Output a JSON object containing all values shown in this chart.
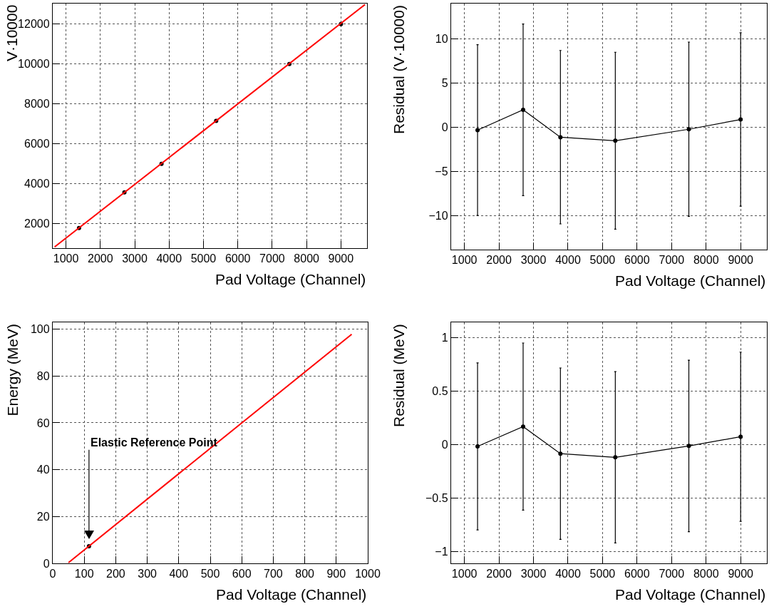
{
  "chart_data": [
    {
      "type": "scatter",
      "xlabel": "Pad Voltage (Channel)",
      "ylabel": "V·10000",
      "xlim": [
        615,
        9760
      ],
      "ylim": [
        770,
        13030
      ],
      "xticks": [
        1000,
        2000,
        3000,
        4000,
        5000,
        6000,
        7000,
        8000,
        9000
      ],
      "yticks": [
        2000,
        4000,
        6000,
        8000,
        10000,
        12000
      ],
      "grid": true,
      "marker": "circle",
      "series": [
        {
          "type": "scatter",
          "color": "#000000",
          "x": [
            1380,
            2700,
            3780,
            5370,
            7500,
            9000
          ],
          "values": [
            1780,
            3570,
            5000,
            7150,
            10000,
            12000
          ]
        },
        {
          "type": "line",
          "marker": "none",
          "color": "#ff0000",
          "x": [
            670,
            9700
          ],
          "values": [
            830,
            12980
          ]
        }
      ]
    },
    {
      "type": "line",
      "xlabel": "Pad Voltage (Channel)",
      "ylabel": "Residual (V·10000)",
      "xlim": [
        615,
        9760
      ],
      "ylim": [
        -13.8,
        14
      ],
      "xticks": [
        1000,
        2000,
        3000,
        4000,
        5000,
        6000,
        7000,
        8000,
        9000
      ],
      "yticks": [
        -10,
        -5,
        0,
        5,
        10
      ],
      "grid": true,
      "marker": "circle",
      "line_style": "solid",
      "x": [
        1380,
        2700,
        3780,
        5370,
        7500,
        9000
      ],
      "series": [
        {
          "color": "#000000",
          "values": [
            -0.3,
            2.0,
            -1.1,
            -1.5,
            -0.2,
            0.9
          ],
          "errors": [
            9.65,
            9.7,
            9.8,
            10,
            9.85,
            9.8
          ]
        }
      ]
    },
    {
      "type": "scatter",
      "xlabel": "Pad Voltage (Channel)",
      "ylabel": "Energy (MeV)",
      "xlim": [
        0,
        1000
      ],
      "ylim": [
        0,
        102.9
      ],
      "xticks": [
        0,
        100,
        200,
        300,
        400,
        500,
        600,
        700,
        800,
        900,
        1000
      ],
      "yticks": [
        0,
        20,
        40,
        60,
        80,
        100
      ],
      "grid": true,
      "marker": "circle",
      "annotations": [
        {
          "text": "Elastic Reference Point",
          "x": 115,
          "y": 7.3
        }
      ],
      "series": [
        {
          "type": "scatter",
          "color": "#000000",
          "x": [
            115
          ],
          "values": [
            7.3
          ]
        },
        {
          "type": "line",
          "marker": "none",
          "color": "#ff0000",
          "x": [
            50,
            949
          ],
          "values": [
            0.3,
            97.8
          ]
        }
      ]
    },
    {
      "type": "line",
      "xlabel": "Pad Voltage (Channel)",
      "ylabel": "Residual (MeV)",
      "xlim": [
        615,
        9760
      ],
      "ylim": [
        -1.11,
        1.14
      ],
      "xticks": [
        1000,
        2000,
        3000,
        4000,
        5000,
        6000,
        7000,
        8000,
        9000
      ],
      "yticks": [
        -1,
        -0.5,
        0,
        0.5,
        1
      ],
      "grid": true,
      "marker": "circle",
      "line_style": "solid",
      "x": [
        1380,
        2700,
        3780,
        5370,
        7500,
        9000
      ],
      "series": [
        {
          "color": "#000000",
          "values": [
            -0.018,
            0.167,
            -0.086,
            -0.12,
            -0.014,
            0.072
          ],
          "errors": [
            0.78,
            0.78,
            0.8,
            0.8,
            0.8,
            0.79
          ]
        }
      ]
    }
  ]
}
